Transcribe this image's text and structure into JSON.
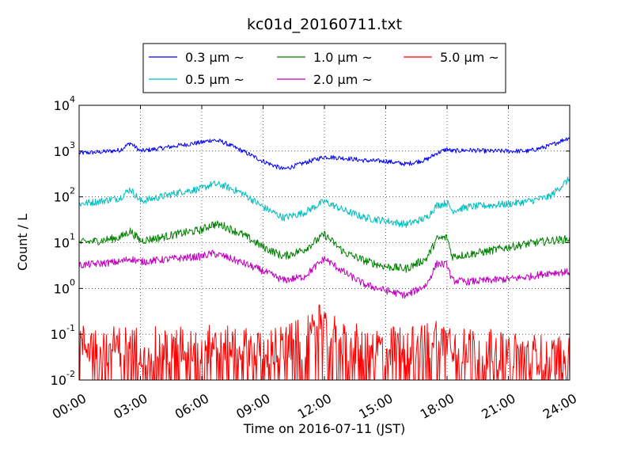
{
  "chart_data": {
    "type": "line",
    "title": "kc01d_20160711.txt",
    "xlabel": "Time on 2016-07-11 (JST)",
    "ylabel": "Count / L",
    "y_scale": "log",
    "ylim": [
      0.01,
      10000
    ],
    "xlim": [
      "00:00",
      "24:00"
    ],
    "x_ticks": [
      "00:00",
      "03:00",
      "06:00",
      "09:00",
      "12:00",
      "15:00",
      "18:00",
      "21:00",
      "24:00"
    ],
    "y_ticks": [
      {
        "base": "10",
        "exp": "-2",
        "value": 0.01
      },
      {
        "base": "10",
        "exp": "-1",
        "value": 0.1
      },
      {
        "base": "10",
        "exp": "0",
        "value": 1
      },
      {
        "base": "10",
        "exp": "1",
        "value": 10
      },
      {
        "base": "10",
        "exp": "2",
        "value": 100
      },
      {
        "base": "10",
        "exp": "3",
        "value": 1000
      },
      {
        "base": "10",
        "exp": "4",
        "value": 10000
      }
    ],
    "grid": true,
    "legend_position": "top",
    "x": [
      "00:00",
      "01:00",
      "02:00",
      "02:30",
      "03:00",
      "04:00",
      "05:00",
      "06:00",
      "06:30",
      "07:00",
      "08:00",
      "09:00",
      "10:00",
      "11:00",
      "12:00",
      "13:00",
      "14:00",
      "15:00",
      "16:00",
      "17:00",
      "17:30",
      "18:00",
      "18:15",
      "19:00",
      "20:00",
      "21:00",
      "22:00",
      "23:00",
      "24:00"
    ],
    "series": [
      {
        "name": "0.3 μm ~",
        "color": "#0000ff",
        "noise": 0.05,
        "values": [
          900,
          950,
          1050,
          1500,
          1000,
          1150,
          1350,
          1550,
          1750,
          1600,
          1000,
          600,
          400,
          550,
          750,
          700,
          620,
          600,
          520,
          650,
          900,
          1100,
          1000,
          1050,
          1000,
          1000,
          1000,
          1300,
          2000
        ]
      },
      {
        "name": "0.5 μm ~",
        "color": "#00bfbf",
        "noise": 0.08,
        "values": [
          70,
          80,
          95,
          150,
          80,
          100,
          130,
          150,
          190,
          180,
          120,
          60,
          35,
          45,
          80,
          50,
          35,
          30,
          25,
          35,
          65,
          75,
          50,
          60,
          65,
          70,
          80,
          100,
          250
        ]
      },
      {
        "name": "1.0 μm ~",
        "color": "#008000",
        "noise": 0.09,
        "values": [
          10,
          11,
          13,
          18,
          11,
          13,
          16,
          19,
          25,
          24,
          15,
          8,
          5,
          7,
          15,
          6,
          4,
          3,
          2.7,
          4.5,
          12,
          13,
          5,
          5.5,
          6.5,
          8,
          9.5,
          11,
          12
        ]
      },
      {
        "name": "2.0 μm ~",
        "color": "#bf00bf",
        "noise": 0.08,
        "values": [
          3.2,
          3.5,
          3.8,
          4.5,
          3.8,
          4.2,
          4.6,
          5,
          5.8,
          5.2,
          3.6,
          2.4,
          1.5,
          1.8,
          4.5,
          2.2,
          1.2,
          0.9,
          0.7,
          1.2,
          3.5,
          3.3,
          1.5,
          1.4,
          1.5,
          1.6,
          1.8,
          2.2,
          2.3
        ]
      },
      {
        "name": "5.0 μm ~",
        "color": "#ff0000",
        "noise": 0,
        "values": [
          0.045,
          0.042,
          0.04,
          0.044,
          0.04,
          0.038,
          0.04,
          0.042,
          0.045,
          0.04,
          0.038,
          0.036,
          0.04,
          0.06,
          0.1,
          0.05,
          0.04,
          0.04,
          0.04,
          0.05,
          0.07,
          0.06,
          0.05,
          0.04,
          0.035,
          0.03,
          0.028,
          0.025,
          0.03
        ],
        "peaks": [
          {
            "x": "11:45",
            "value": 0.5
          },
          {
            "x": "12:00",
            "value": 0.3
          },
          {
            "x": "11:30",
            "value": 0.2
          },
          {
            "x": "17:45",
            "value": 0.15
          },
          {
            "x": "18:05",
            "value": 0.12
          }
        ]
      }
    ]
  }
}
